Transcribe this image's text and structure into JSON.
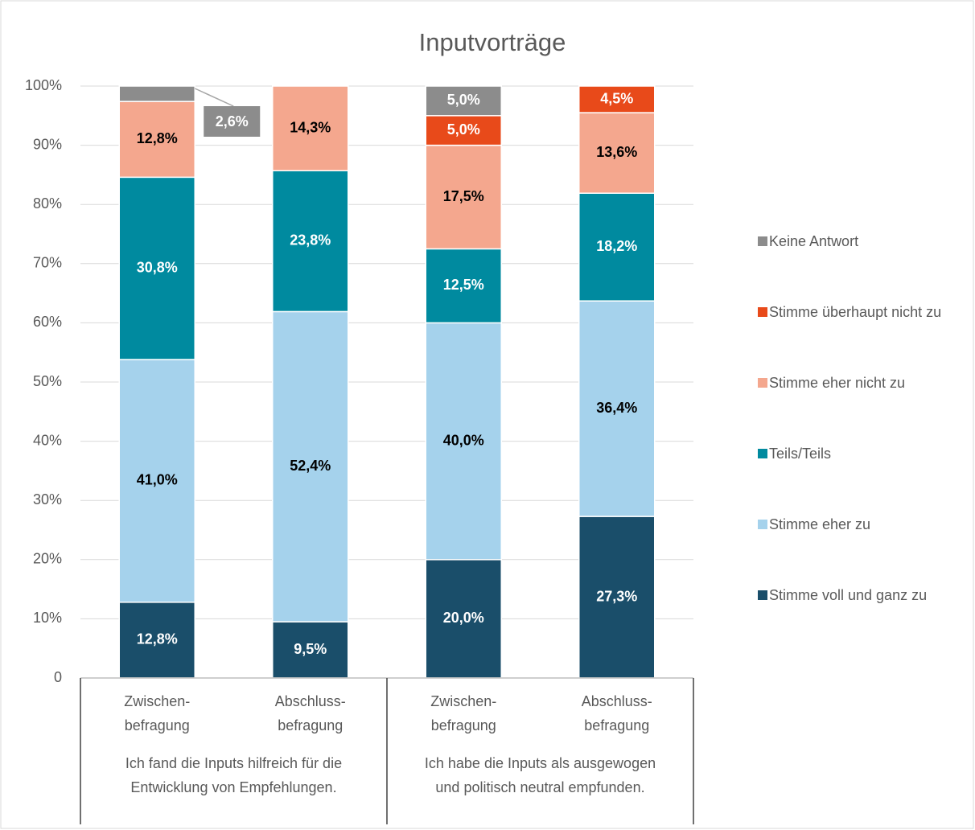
{
  "chart_data": {
    "type": "stacked-bar",
    "title": "Inputvorträge",
    "categories": [
      "Zwischen-\nbefragung",
      "Abschluss-\nbefragung",
      "Zwischen-\nbefragung",
      "Abschluss-\nbefragung"
    ],
    "groups": [
      "Ich fand die Inputs hilfreich für die Entwicklung von Empfehlungen.",
      "Ich habe die Inputs als ausgewogen und politisch neutral empfunden."
    ],
    "series": [
      {
        "name": "Stimme voll und ganz zu",
        "color": "#1a4e6a",
        "values": [
          12.8,
          9.5,
          20.0,
          27.3
        ],
        "value_labels": [
          "12,8%",
          "9,5%",
          "20,0%",
          "27,3%"
        ]
      },
      {
        "name": "Stimme eher zu",
        "color": "#a5d2ec",
        "values": [
          41.0,
          52.4,
          40.0,
          36.4
        ],
        "value_labels": [
          "41,0%",
          "52,4%",
          "40,0%",
          "36,4%"
        ]
      },
      {
        "name": "Teils/Teils",
        "color": "#008a9f",
        "values": [
          30.8,
          23.8,
          12.5,
          18.2
        ],
        "value_labels": [
          "30,8%",
          "23,8%",
          "12,5%",
          "18,2%"
        ]
      },
      {
        "name": "Stimme eher nicht zu",
        "color": "#f4a78e",
        "values": [
          12.8,
          14.3,
          17.5,
          13.6
        ],
        "value_labels": [
          "12,8%",
          "14,3%",
          "17,5%",
          "13,6%"
        ]
      },
      {
        "name": "Stimme überhaupt nicht zu",
        "color": "#e84a1a",
        "values": [
          null,
          null,
          5.0,
          4.5
        ],
        "value_labels": [
          null,
          null,
          "5,0%",
          "4,5%"
        ]
      },
      {
        "name": "Keine Antwort",
        "color": "#8c8c8c",
        "values": [
          2.6,
          null,
          5.0,
          null
        ],
        "value_labels": [
          "2,6%",
          null,
          "5,0%",
          null
        ]
      }
    ],
    "ylim": [
      0,
      100
    ],
    "yticks": [
      0,
      {
        "value": 10,
        "label": "10%"
      },
      {
        "value": 20,
        "label": "20%"
      },
      {
        "value": 30,
        "label": "30%"
      },
      {
        "value": 40,
        "label": "40%"
      },
      {
        "value": 50,
        "label": "50%"
      },
      {
        "value": 60,
        "label": "60%"
      },
      {
        "value": 70,
        "label": "70%"
      },
      {
        "value": 80,
        "label": "80%"
      },
      {
        "value": 90,
        "label": "90%"
      },
      {
        "value": 100,
        "label": "100%"
      }
    ],
    "grid": true,
    "legend": "right"
  }
}
